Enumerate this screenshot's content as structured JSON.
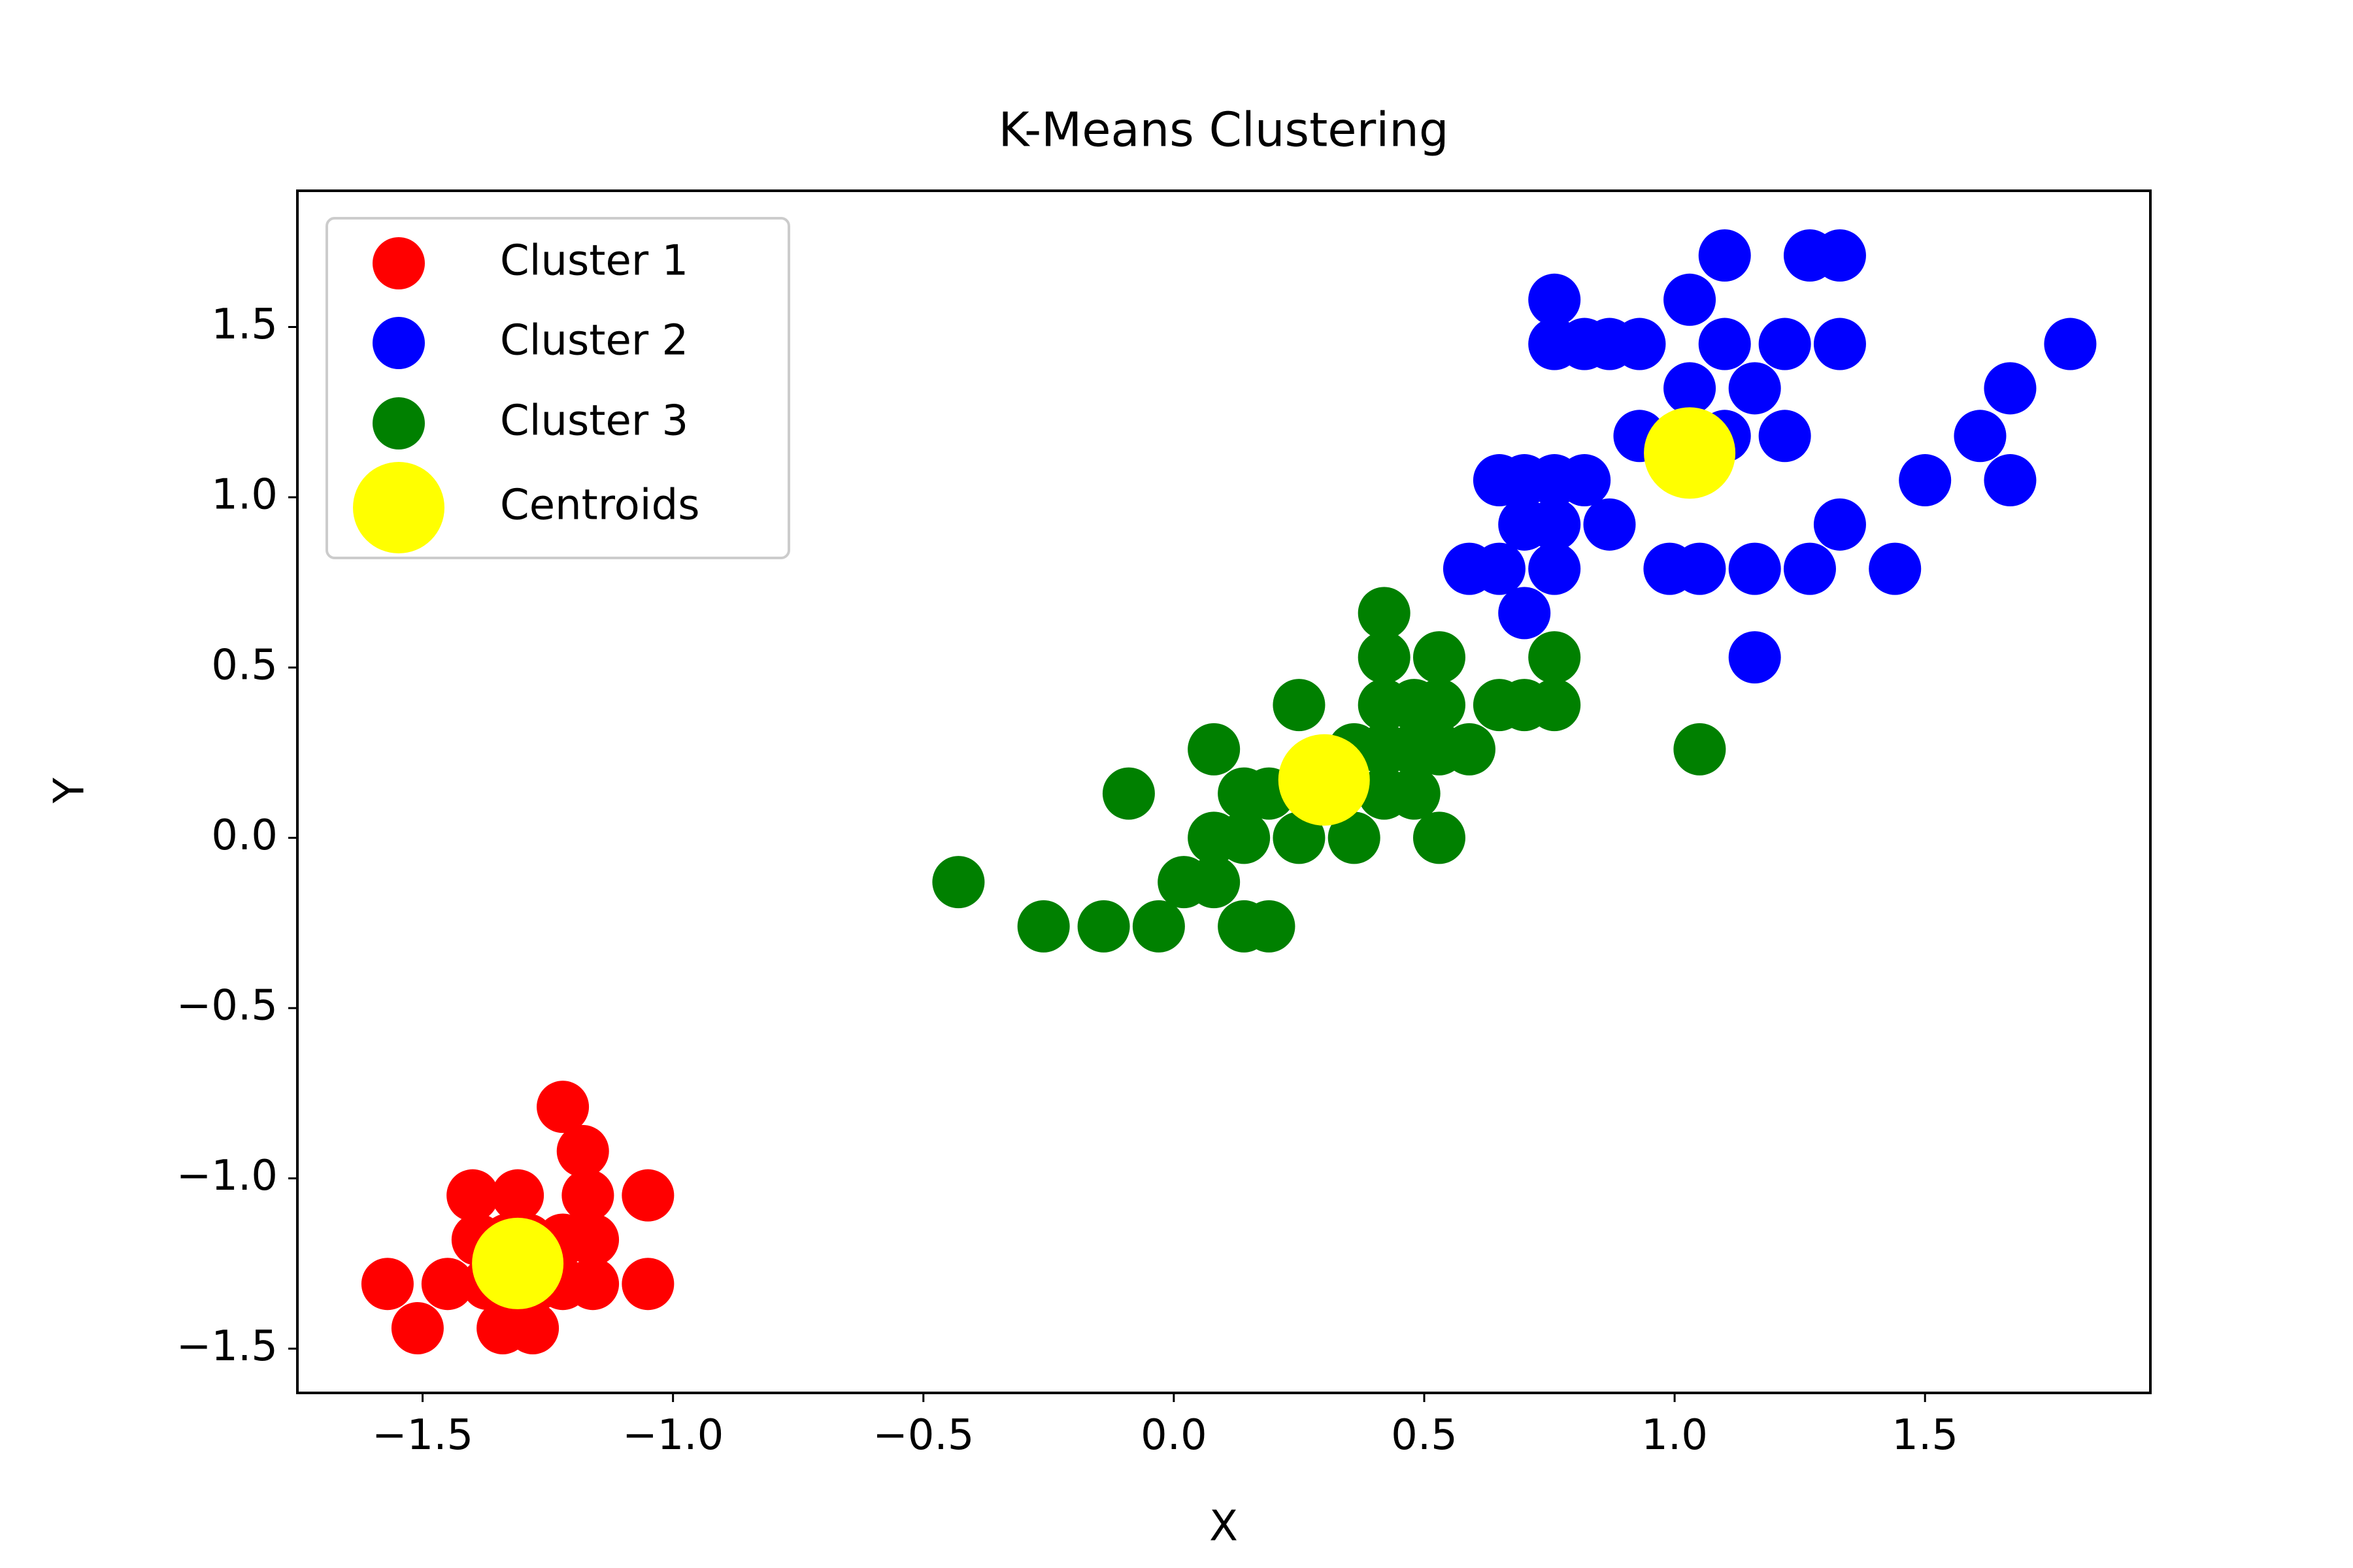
{
  "chart_data": {
    "type": "scatter",
    "title": "K-Means Clustering",
    "xlabel": "X",
    "ylabel": "Y",
    "xlim": [
      -1.75,
      1.95
    ],
    "ylim": [
      -1.63,
      1.9
    ],
    "xticks": [
      -1.5,
      -1.0,
      -0.5,
      0.0,
      0.5,
      1.0,
      1.5
    ],
    "xtick_labels": [
      "−1.5",
      "−1.0",
      "−0.5",
      "0.0",
      "0.5",
      "1.0",
      "1.5"
    ],
    "yticks": [
      -1.5,
      -1.0,
      -0.5,
      0.0,
      0.5,
      1.0,
      1.5
    ],
    "ytick_labels": [
      "−1.5",
      "−1.0",
      "−0.5",
      "0.0",
      "0.5",
      "1.0",
      "1.5"
    ],
    "grid": false,
    "legend_position": "upper-left",
    "series": [
      {
        "name": "Cluster 1",
        "color": "#ff0000",
        "points": [
          [
            -1.57,
            -1.31
          ],
          [
            -1.51,
            -1.44
          ],
          [
            -1.45,
            -1.31
          ],
          [
            -1.4,
            -1.05
          ],
          [
            -1.39,
            -1.18
          ],
          [
            -1.37,
            -1.31
          ],
          [
            -1.34,
            -1.44
          ],
          [
            -1.33,
            -1.18
          ],
          [
            -1.31,
            -1.05
          ],
          [
            -1.29,
            -1.18
          ],
          [
            -1.28,
            -1.44
          ],
          [
            -1.27,
            -1.31
          ],
          [
            -1.22,
            -0.79
          ],
          [
            -1.22,
            -1.18
          ],
          [
            -1.22,
            -1.31
          ],
          [
            -1.18,
            -0.92
          ],
          [
            -1.17,
            -1.05
          ],
          [
            -1.16,
            -1.18
          ],
          [
            -1.16,
            -1.31
          ],
          [
            -1.05,
            -1.05
          ],
          [
            -1.05,
            -1.31
          ]
        ]
      },
      {
        "name": "Cluster 2",
        "color": "#0000ff",
        "points": [
          [
            0.59,
            0.79
          ],
          [
            0.65,
            1.05
          ],
          [
            0.65,
            0.79
          ],
          [
            0.7,
            1.05
          ],
          [
            0.7,
            0.92
          ],
          [
            0.7,
            0.66
          ],
          [
            0.76,
            1.05
          ],
          [
            0.76,
            0.92
          ],
          [
            0.76,
            0.79
          ],
          [
            0.76,
            1.58
          ],
          [
            0.76,
            1.45
          ],
          [
            0.82,
            1.45
          ],
          [
            0.82,
            1.05
          ],
          [
            0.87,
            1.45
          ],
          [
            0.87,
            0.92
          ],
          [
            0.93,
            1.45
          ],
          [
            0.93,
            1.18
          ],
          [
            0.99,
            0.79
          ],
          [
            1.03,
            1.58
          ],
          [
            1.03,
            1.32
          ],
          [
            1.05,
            0.79
          ],
          [
            1.1,
            1.71
          ],
          [
            1.1,
            1.45
          ],
          [
            1.1,
            1.18
          ],
          [
            1.16,
            1.32
          ],
          [
            1.16,
            0.79
          ],
          [
            1.16,
            0.53
          ],
          [
            1.22,
            1.45
          ],
          [
            1.22,
            1.18
          ],
          [
            1.27,
            1.71
          ],
          [
            1.27,
            0.79
          ],
          [
            1.33,
            1.71
          ],
          [
            1.33,
            1.45
          ],
          [
            1.33,
            0.92
          ],
          [
            1.44,
            0.79
          ],
          [
            1.5,
            1.05
          ],
          [
            1.61,
            1.18
          ],
          [
            1.67,
            1.32
          ],
          [
            1.67,
            1.05
          ],
          [
            1.79,
            1.45
          ]
        ]
      },
      {
        "name": "Cluster 3",
        "color": "#008000",
        "points": [
          [
            -0.43,
            -0.13
          ],
          [
            -0.26,
            -0.26
          ],
          [
            -0.14,
            -0.26
          ],
          [
            -0.09,
            0.13
          ],
          [
            -0.03,
            -0.26
          ],
          [
            0.02,
            -0.13
          ],
          [
            0.08,
            0.26
          ],
          [
            0.08,
            0.0
          ],
          [
            0.08,
            -0.13
          ],
          [
            0.14,
            0.13
          ],
          [
            0.14,
            -0.26
          ],
          [
            0.14,
            0.0
          ],
          [
            0.19,
            -0.26
          ],
          [
            0.19,
            0.13
          ],
          [
            0.25,
            0.39
          ],
          [
            0.25,
            0.0
          ],
          [
            0.31,
            0.13
          ],
          [
            0.36,
            0.26
          ],
          [
            0.36,
            0.0
          ],
          [
            0.42,
            0.66
          ],
          [
            0.42,
            0.53
          ],
          [
            0.42,
            0.39
          ],
          [
            0.42,
            0.26
          ],
          [
            0.42,
            0.13
          ],
          [
            0.48,
            0.39
          ],
          [
            0.48,
            0.26
          ],
          [
            0.48,
            0.13
          ],
          [
            0.53,
            0.53
          ],
          [
            0.53,
            0.39
          ],
          [
            0.53,
            0.26
          ],
          [
            0.53,
            0.0
          ],
          [
            0.59,
            0.26
          ],
          [
            0.65,
            0.39
          ],
          [
            0.7,
            0.39
          ],
          [
            0.76,
            0.53
          ],
          [
            0.76,
            0.39
          ],
          [
            1.05,
            0.26
          ]
        ]
      },
      {
        "name": "Centroids",
        "color": "#ffff00",
        "large": true,
        "points": [
          [
            -1.31,
            -1.25
          ],
          [
            0.3,
            0.17
          ],
          [
            1.03,
            1.13
          ]
        ]
      }
    ]
  }
}
